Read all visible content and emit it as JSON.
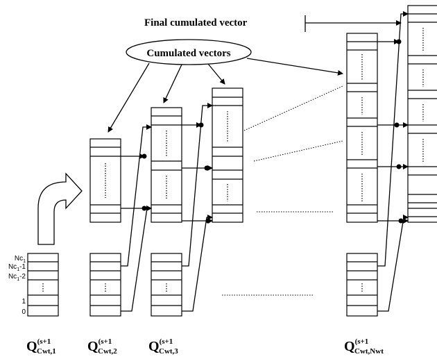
{
  "header": {
    "final_label": "Final cumulated vector",
    "cumulated_label": "Cumulated vectors"
  },
  "row_labels": [
    {
      "text": "Nc",
      "sub": "1",
      "suffix": ""
    },
    {
      "text": "Nc",
      "sub": "1",
      "suffix": "-1"
    },
    {
      "text": "Nc",
      "sub": "1",
      "suffix": "-2"
    },
    {
      "text": "1"
    },
    {
      "text": "0"
    }
  ],
  "columns": [
    {
      "base": "Q",
      "sup": "(s+1",
      "sub": "Cwt,1"
    },
    {
      "base": "Q",
      "sup": "(s+1",
      "sub": "Cwt,2"
    },
    {
      "base": "Q",
      "sup": "(s+1",
      "sub": "Cwt,3"
    },
    {
      "base": "Q",
      "sup": "(s+1",
      "sub": "Cwt,Nwt"
    }
  ]
}
